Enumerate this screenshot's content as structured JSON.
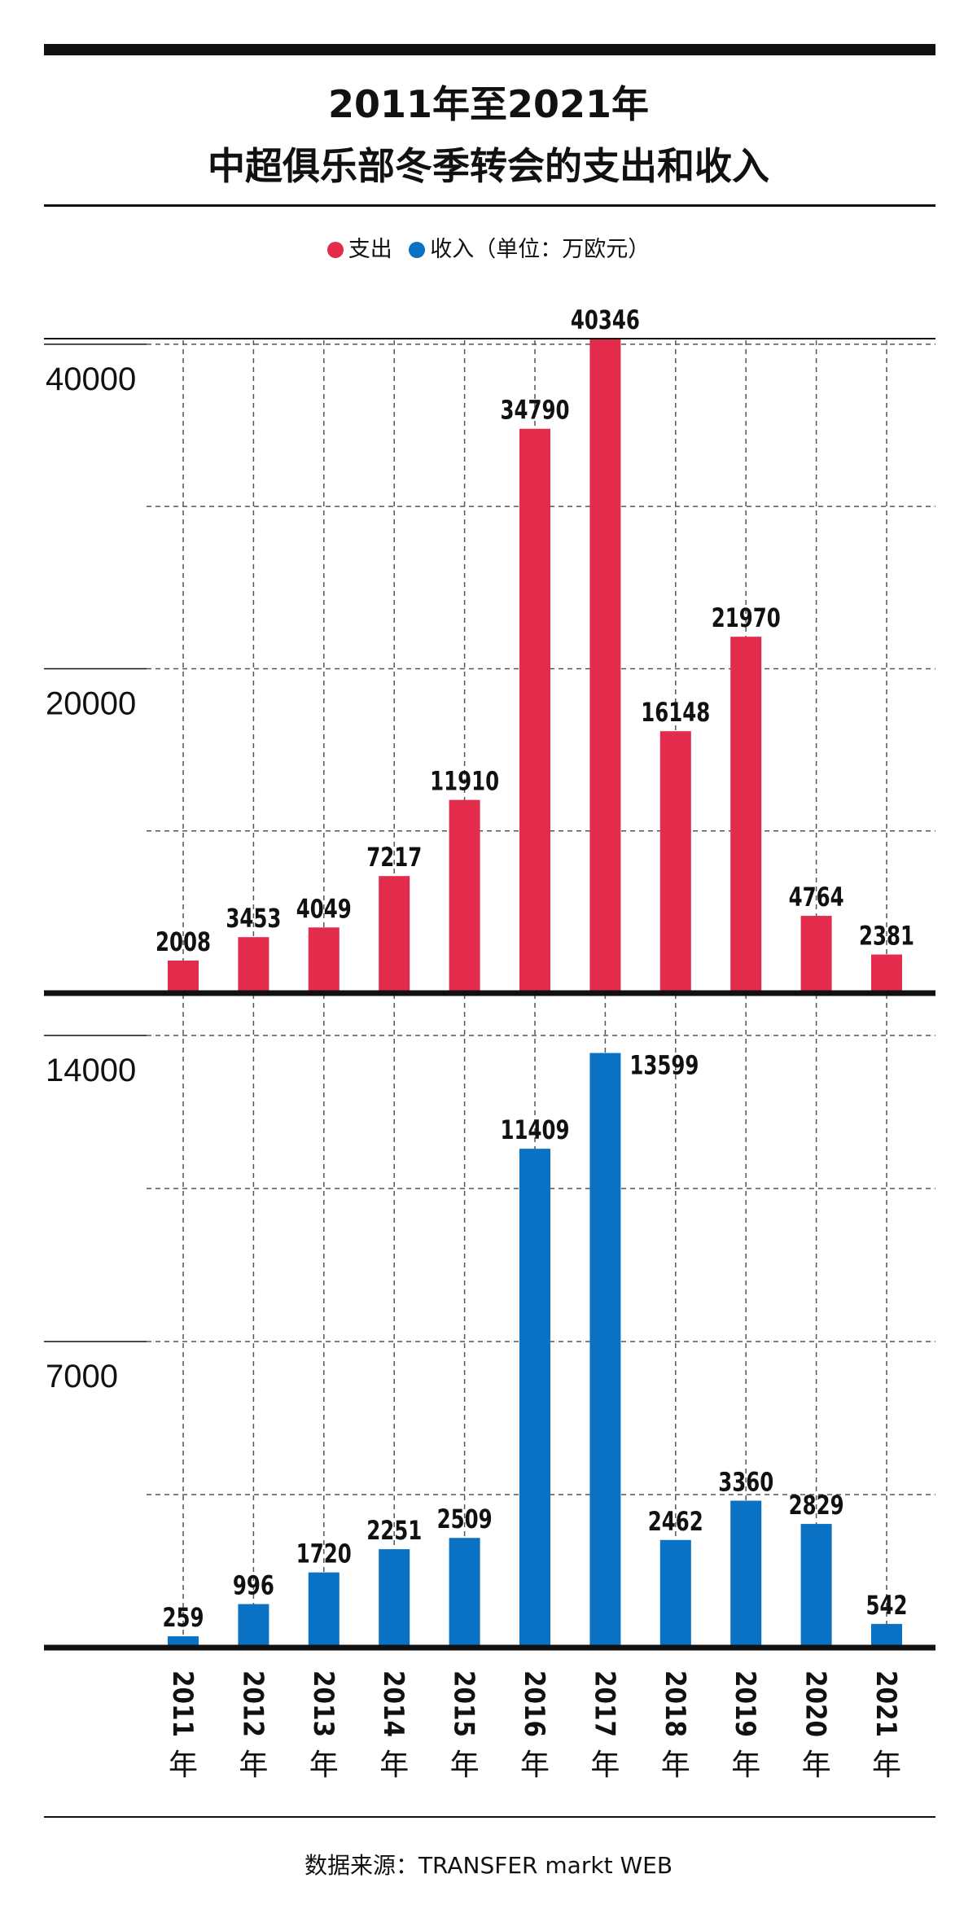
{
  "title": {
    "line1": "2011年至2021年",
    "line2": "中超俱乐部冬季转会的支出和收入"
  },
  "legend": {
    "expense_label": "支出",
    "income_label": "收入（单位：万欧元）"
  },
  "colors": {
    "expense": "#e32b4b",
    "income": "#0a72c5",
    "axis": "#111111",
    "grid": "#555555"
  },
  "source": "数据来源：TRANSFER markt WEB",
  "chart_data": [
    {
      "type": "bar",
      "name": "expense",
      "categories": [
        "2011年",
        "2012年",
        "2013年",
        "2014年",
        "2015年",
        "2016年",
        "2017年",
        "2018年",
        "2019年",
        "2020年",
        "2021年"
      ],
      "series": [
        {
          "name": "支出",
          "values": [
            2008,
            3453,
            4049,
            7217,
            11910,
            34790,
            40346,
            16148,
            21970,
            4764,
            2381
          ]
        }
      ],
      "ylim": [
        0,
        40346
      ],
      "yticks": [
        20000,
        40000
      ],
      "grid": true
    },
    {
      "type": "bar",
      "name": "income",
      "categories": [
        "2011年",
        "2012年",
        "2013年",
        "2014年",
        "2015年",
        "2016年",
        "2017年",
        "2018年",
        "2019年",
        "2020年",
        "2021年"
      ],
      "series": [
        {
          "name": "收入",
          "values": [
            259,
            996,
            1720,
            2251,
            2509,
            11409,
            13599,
            2462,
            3360,
            2829,
            542
          ]
        }
      ],
      "ylim": [
        0,
        14000
      ],
      "yticks": [
        7000,
        14000
      ],
      "grid": true
    }
  ]
}
